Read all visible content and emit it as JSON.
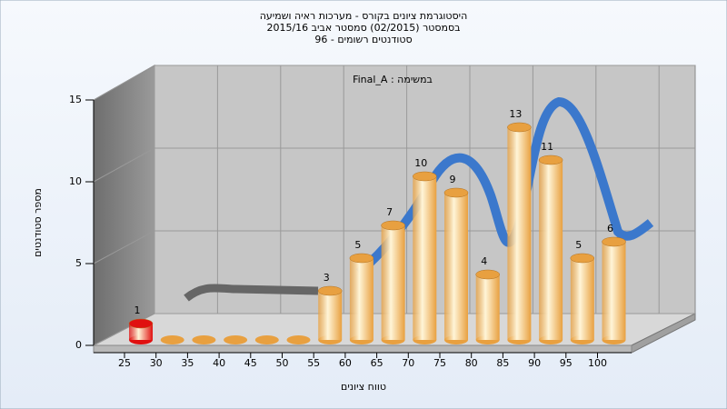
{
  "chart_data": {
    "type": "bar",
    "title": "היסטוגרמת ציונים בקורס - מערכות ראיה ושמיעה",
    "subtitle": [
      "בסמסטר  (02/2015)  סמסטר אביב 2015/16",
      "סטודנטים רשומים - 96"
    ],
    "annotation": "Final_A : במשימה",
    "x_label": "טווח ציונים",
    "y_label": "מספר סטודנטים",
    "categories": [
      "25",
      "30",
      "35",
      "40",
      "45",
      "50",
      "55",
      "60",
      "65",
      "70",
      "75",
      "80",
      "85",
      "90",
      "95",
      "100"
    ],
    "values": [
      1,
      0,
      0,
      0,
      0,
      0,
      3,
      5,
      7,
      10,
      9,
      4,
      13,
      11,
      5,
      6
    ],
    "bar_colors": [
      "#e01010",
      "#e8a040",
      "#e8a040",
      "#e8a040",
      "#e8a040",
      "#e8a040",
      "#e8a040",
      "#e8a040",
      "#e8a040",
      "#e8a040",
      "#e8a040",
      "#e8a040",
      "#e8a040",
      "#e8a040",
      "#e8a040",
      "#e8a040"
    ],
    "ylim": [
      0,
      15
    ],
    "yticks": [
      0,
      5,
      10,
      15
    ],
    "grid": true
  }
}
